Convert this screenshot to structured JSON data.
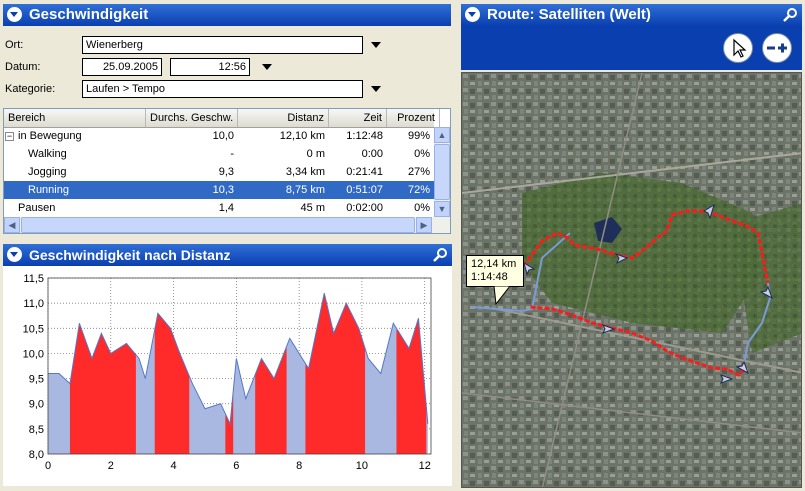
{
  "speed_panel": {
    "title": "Geschwindigkeit",
    "ort_label": "Ort:",
    "ort_value": "Wienerberg",
    "datum_label": "Datum:",
    "datum_value": "25.09.2005",
    "zeit_value": "12:56",
    "kategorie_label": "Kategorie:",
    "kategorie_value": "Laufen > Tempo"
  },
  "table": {
    "headers": [
      "Bereich",
      "Durchs. Geschw.",
      "Distanz",
      "Zeit",
      "Prozent"
    ],
    "rows": [
      {
        "bereich": "in Bewegung",
        "geschw": "10,0",
        "distanz": "12,10 km",
        "zeit": "1:12:48",
        "prozent": "99%",
        "expander": "−"
      },
      {
        "bereich": "Walking",
        "geschw": "-",
        "distanz": "0 m",
        "zeit": "0:00",
        "prozent": "0%"
      },
      {
        "bereich": "Jogging",
        "geschw": "9,3",
        "distanz": "3,34 km",
        "zeit": "0:21:41",
        "prozent": "27%"
      },
      {
        "bereich": "Running",
        "geschw": "10,3",
        "distanz": "8,75 km",
        "zeit": "0:51:07",
        "prozent": "72%"
      },
      {
        "bereich": "Pausen",
        "geschw": "1,4",
        "distanz": "45 m",
        "zeit": "0:02:00",
        "prozent": "0%"
      }
    ],
    "selected_row": 3
  },
  "chart_panel": {
    "title": "Geschwindigkeit nach Distanz"
  },
  "chart_data": {
    "type": "area",
    "xlabel": "",
    "ylabel": "",
    "xlim": [
      0,
      12.2
    ],
    "ylim": [
      8.0,
      11.5
    ],
    "x_ticks": [
      "0",
      "2",
      "4",
      "6",
      "8",
      "10",
      "12"
    ],
    "y_ticks": [
      "8,0",
      "8,5",
      "9,0",
      "9,5",
      "10,0",
      "10,5",
      "11,0",
      "11,5"
    ],
    "grid": true,
    "colors": {
      "running": "#ff2a2a",
      "jogging": "#a8b8e0",
      "line": "#5577cc"
    },
    "x": [
      0,
      0.35,
      0.7,
      1.0,
      1.4,
      1.7,
      2.0,
      2.5,
      2.9,
      3.1,
      3.5,
      3.9,
      4.2,
      4.6,
      5.0,
      5.5,
      5.8,
      6.0,
      6.3,
      6.8,
      7.2,
      7.7,
      8.3,
      8.8,
      9.1,
      9.5,
      9.9,
      10.2,
      10.6,
      11.0,
      11.5,
      11.8,
      12.1
    ],
    "y": [
      9.6,
      9.6,
      9.4,
      10.6,
      9.9,
      10.4,
      10.0,
      10.2,
      9.9,
      9.5,
      10.8,
      10.5,
      10.0,
      9.4,
      8.9,
      9.0,
      8.6,
      9.9,
      9.1,
      9.9,
      9.5,
      10.3,
      9.7,
      11.2,
      10.4,
      11.0,
      10.5,
      9.9,
      9.6,
      10.6,
      10.1,
      10.7,
      8.6
    ],
    "running_segments": [
      [
        0.7,
        2.8
      ],
      [
        3.4,
        4.5
      ],
      [
        5.65,
        5.9
      ],
      [
        6.6,
        7.6
      ],
      [
        8.2,
        10.1
      ],
      [
        11.1,
        12.05
      ]
    ]
  },
  "map_panel": {
    "title": "Route: Satelliten (Welt)",
    "tooltip_line1": "12,14 km",
    "tooltip_line2": "1:14:48"
  }
}
